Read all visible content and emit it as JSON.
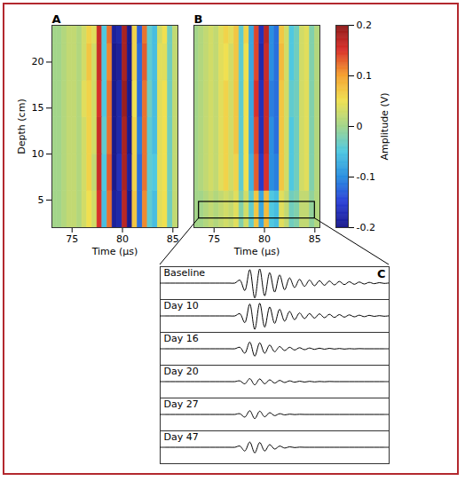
{
  "chart_data": [
    {
      "type": "heatmap",
      "panel": "A",
      "xlabel": "Time (µs)",
      "ylabel": "Depth (cm)",
      "xlim": [
        73,
        85.5
      ],
      "ylim": [
        2,
        24
      ],
      "xticks": [
        75,
        80,
        85
      ],
      "yticks": [
        5,
        10,
        15,
        20
      ],
      "x_edges": [
        73,
        73.5,
        74,
        74.5,
        75,
        75.5,
        76,
        76.5,
        77,
        77.5,
        78,
        78.5,
        79,
        79.5,
        80,
        80.5,
        81,
        81.5,
        82,
        82.5,
        83,
        83.5,
        84,
        84.5,
        85,
        85.5
      ],
      "y_edges": [
        2,
        6,
        10,
        14,
        18,
        22,
        24
      ],
      "cells": [
        [
          0,
          0,
          0.01,
          0.02,
          0.02,
          0.01,
          0.03,
          0.05,
          0.03,
          0.15,
          -0.06,
          0.12,
          -0.19,
          -0.18,
          0.17,
          -0.2,
          0.07,
          -0.12,
          0.11,
          -0.04,
          -0.06,
          0.04,
          0.05,
          -0.03,
          0.02
        ],
        [
          0,
          0,
          0.01,
          0.02,
          0.02,
          0.01,
          0.03,
          0.06,
          0.02,
          0.16,
          -0.05,
          0.13,
          -0.2,
          -0.17,
          0.18,
          -0.19,
          0.06,
          -0.12,
          0.12,
          -0.04,
          -0.05,
          0.04,
          0.05,
          -0.03,
          0.02
        ],
        [
          0,
          0,
          0.01,
          0.02,
          0.02,
          0.01,
          0.03,
          0.06,
          0.03,
          0.16,
          -0.04,
          0.12,
          -0.2,
          -0.18,
          0.18,
          -0.2,
          0.06,
          -0.11,
          0.12,
          -0.04,
          -0.06,
          0.04,
          0.05,
          -0.03,
          0.02
        ],
        [
          0,
          0,
          0.01,
          0.02,
          0.02,
          0.01,
          0.04,
          0.06,
          0.03,
          0.15,
          -0.05,
          0.12,
          -0.2,
          -0.18,
          0.19,
          -0.2,
          0.05,
          -0.12,
          0.12,
          -0.03,
          -0.06,
          0.04,
          0.05,
          -0.03,
          0.02
        ],
        [
          0,
          0,
          0.01,
          0.02,
          0.02,
          0.01,
          0.03,
          0.07,
          0.03,
          0.16,
          -0.05,
          0.11,
          -0.2,
          -0.19,
          0.18,
          -0.2,
          0.06,
          -0.12,
          0.13,
          -0.04,
          -0.06,
          0.04,
          0.04,
          -0.03,
          0.02
        ],
        [
          0,
          0,
          0.01,
          0.02,
          0.02,
          0.01,
          0.03,
          0.06,
          0.04,
          0.16,
          -0.05,
          0.12,
          -0.19,
          -0.18,
          0.18,
          -0.2,
          0.06,
          -0.13,
          0.12,
          -0.04,
          -0.06,
          0.03,
          0.05,
          -0.03,
          0.02
        ]
      ]
    },
    {
      "type": "heatmap",
      "panel": "B",
      "xlabel": "Time (µs)",
      "tick_labels": "x",
      "xlim": [
        73,
        85.5
      ],
      "ylim": [
        2,
        24
      ],
      "xticks": [
        75,
        80,
        85
      ],
      "x_edges": [
        73,
        73.5,
        74,
        74.5,
        75,
        75.5,
        76,
        76.5,
        77,
        77.5,
        78,
        78.5,
        79,
        79.5,
        80,
        80.5,
        81,
        81.5,
        82,
        82.5,
        83,
        83.5,
        84,
        84.5,
        85,
        85.5
      ],
      "y_edges": [
        2,
        6,
        10,
        14,
        18,
        22,
        24
      ],
      "cells": [
        [
          0,
          0,
          0.01,
          0.02,
          0.01,
          0.02,
          0.03,
          0.02,
          0.04,
          -0.02,
          0.03,
          -0.04,
          0.07,
          -0.08,
          0.08,
          -0.05,
          -0.06,
          0.04,
          0.02,
          -0.03,
          -0.02,
          0.02,
          0.02,
          -0.01,
          0.01
        ],
        [
          0,
          0.01,
          0.02,
          0.03,
          0.02,
          0.04,
          0.06,
          0.03,
          0.06,
          -0.04,
          0.05,
          -0.07,
          0.13,
          -0.16,
          0.15,
          -0.1,
          -0.11,
          0.07,
          0.03,
          -0.05,
          -0.03,
          0.03,
          0.04,
          -0.02,
          0.01
        ],
        [
          0,
          0.01,
          0.02,
          0.03,
          0.02,
          0.04,
          0.06,
          0.03,
          0.07,
          -0.04,
          0.05,
          -0.08,
          0.14,
          -0.17,
          0.16,
          -0.1,
          -0.12,
          0.07,
          0.03,
          -0.05,
          -0.03,
          0.03,
          0.04,
          -0.02,
          0.01
        ],
        [
          0,
          0.01,
          0.02,
          0.03,
          0.02,
          0.04,
          0.06,
          0.03,
          0.07,
          -0.04,
          0.05,
          -0.08,
          0.15,
          -0.17,
          0.16,
          -0.11,
          -0.12,
          0.07,
          0.03,
          -0.04,
          -0.03,
          0.03,
          0.04,
          -0.02,
          0.01
        ],
        [
          0,
          0.01,
          0.02,
          0.03,
          0.02,
          0.04,
          0.05,
          0.03,
          0.07,
          -0.04,
          0.05,
          -0.08,
          0.14,
          -0.18,
          0.16,
          -0.1,
          -0.12,
          0.08,
          0.03,
          -0.05,
          -0.03,
          0.03,
          0.04,
          -0.02,
          0.01
        ],
        [
          0,
          0.01,
          0.02,
          0.03,
          0.02,
          0.04,
          0.06,
          0.04,
          0.07,
          -0.04,
          0.06,
          -0.08,
          0.14,
          -0.17,
          0.17,
          -0.1,
          -0.12,
          0.07,
          0.03,
          -0.05,
          -0.03,
          0.03,
          0.04,
          -0.02,
          0.01
        ]
      ],
      "zoom_box": {
        "x": [
          73.5,
          85
        ],
        "y": [
          3,
          4.8
        ]
      },
      "colorbar": {
        "label": "Amplitude (V)",
        "range": [
          -0.2,
          0.2
        ],
        "ticks": [
          -0.2,
          -0.1,
          0,
          0.1,
          0.2
        ]
      }
    },
    {
      "type": "line",
      "panel": "C",
      "tick_labels": false,
      "xlim": [
        73.5,
        85
      ],
      "ylim": [
        -1.1,
        1.1
      ],
      "x": [
        73.5,
        73.75,
        74,
        74.25,
        74.5,
        74.75,
        75,
        75.25,
        75.5,
        75.75,
        76,
        76.25,
        76.5,
        76.75,
        77,
        77.25,
        77.5,
        77.75,
        78,
        78.25,
        78.5,
        78.75,
        79,
        79.25,
        79.5,
        79.75,
        80,
        80.25,
        80.5,
        80.75,
        81,
        81.25,
        81.5,
        81.75,
        82,
        82.25,
        82.5,
        82.75,
        83,
        83.25,
        83.5,
        83.75,
        84,
        84.25,
        84.5,
        84.75,
        85
      ],
      "series": [
        {
          "name": "Baseline",
          "color": "#000000",
          "values": [
            0,
            0,
            0,
            0,
            0,
            0,
            0,
            0,
            0,
            0,
            0,
            0,
            0,
            0,
            0,
            0,
            0.2,
            -0.5,
            0.9,
            -1.0,
            0.95,
            -0.85,
            0.7,
            -0.6,
            0.55,
            -0.45,
            0.35,
            -0.3,
            0.25,
            -0.22,
            0.2,
            -0.18,
            0.16,
            -0.15,
            0.14,
            -0.12,
            0.11,
            -0.1,
            0.09,
            -0.08,
            0.07,
            -0.06,
            0.05,
            -0.04,
            0.03,
            -0.02,
            0.01
          ]
        },
        {
          "name": "Day 10",
          "color": "#000000",
          "values": [
            0,
            0,
            0,
            0,
            0,
            0,
            0,
            0,
            0,
            0,
            0,
            0,
            0,
            0,
            0,
            0,
            0.15,
            -0.45,
            0.8,
            -0.9,
            0.85,
            -0.75,
            0.6,
            -0.5,
            0.45,
            -0.35,
            0.3,
            -0.25,
            0.2,
            -0.18,
            0.16,
            -0.15,
            0.14,
            -0.12,
            0.11,
            -0.1,
            0.09,
            -0.08,
            0.07,
            -0.06,
            0.05,
            -0.05,
            0.04,
            -0.03,
            0.02,
            -0.02,
            0.01
          ]
        },
        {
          "name": "Day 16",
          "color": "#000000",
          "values": [
            0,
            0,
            0,
            0,
            0,
            0,
            0,
            0,
            0,
            0,
            0,
            0,
            0,
            0,
            0,
            0,
            0.1,
            -0.3,
            0.45,
            -0.5,
            0.4,
            -0.3,
            0.25,
            -0.2,
            0.15,
            -0.12,
            0.1,
            -0.08,
            0.07,
            -0.06,
            0.05,
            -0.04,
            0.04,
            -0.03,
            0.03,
            -0.02,
            0.02,
            -0.02,
            0.01,
            -0.01,
            0.01,
            0,
            0,
            0,
            0,
            0,
            0
          ]
        },
        {
          "name": "Day 20",
          "color": "#000000",
          "values": [
            0,
            0,
            0,
            0,
            0,
            0,
            0,
            0,
            0,
            0,
            0,
            0,
            0,
            0,
            0,
            0,
            0.05,
            -0.15,
            0.2,
            -0.22,
            0.18,
            -0.15,
            0.12,
            -0.1,
            0.08,
            -0.06,
            0.05,
            -0.04,
            0.03,
            -0.03,
            0.02,
            -0.02,
            0.01,
            -0.01,
            0.01,
            0,
            0,
            0,
            0,
            0,
            0,
            0,
            0,
            0,
            0,
            0,
            0
          ]
        },
        {
          "name": "Day 27",
          "color": "#000000",
          "values": [
            0,
            0,
            0,
            0,
            0,
            0,
            0,
            0,
            0,
            0,
            0,
            0,
            0,
            0,
            0,
            0,
            0.05,
            -0.18,
            0.25,
            -0.28,
            0.22,
            -0.16,
            0.12,
            -0.08,
            0.05,
            -0.03,
            0.02,
            -0.01,
            0.01,
            0,
            0,
            0,
            0,
            0,
            0,
            0,
            0,
            0,
            0,
            0,
            0,
            0,
            0,
            0,
            0,
            0,
            0
          ]
        },
        {
          "name": "Day 47",
          "color": "#000000",
          "values": [
            0,
            0,
            0,
            0,
            0,
            0,
            0,
            0,
            0,
            0,
            0,
            0,
            0,
            0,
            0,
            0,
            0.08,
            -0.25,
            0.35,
            -0.38,
            0.32,
            -0.25,
            0.18,
            -0.12,
            0.08,
            -0.05,
            0.03,
            -0.02,
            0.01,
            0,
            0,
            0,
            0,
            0,
            0,
            0,
            0,
            0,
            0,
            0,
            0,
            0,
            0,
            0,
            0,
            0,
            0
          ]
        }
      ]
    }
  ]
}
